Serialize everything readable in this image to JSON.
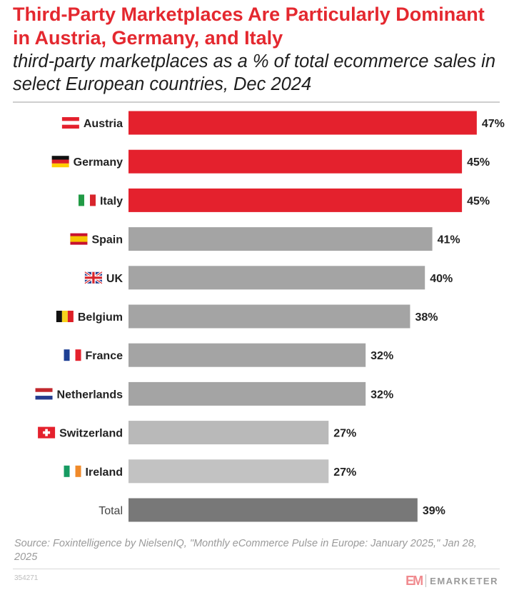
{
  "title": "Third-Party Marketplaces Are Particularly Dominant in Austria, Germany, and Italy",
  "subtitle": "third-party marketplaces as a % of total ecommerce sales in select European countries, Dec 2024",
  "chart_data": {
    "type": "bar",
    "orientation": "horizontal",
    "title": "Third-Party Marketplaces Are Particularly Dominant in Austria, Germany, and Italy",
    "subtitle": "third-party marketplaces as a % of total ecommerce sales in select European countries, Dec 2024",
    "xlabel": "",
    "ylabel": "",
    "unit": "%",
    "xlim": [
      0,
      50
    ],
    "categories": [
      "Austria",
      "Germany",
      "Italy",
      "Spain",
      "UK",
      "Belgium",
      "France",
      "Netherlands",
      "Switzerland",
      "Ireland",
      "Total"
    ],
    "values": [
      47,
      45,
      45,
      41,
      40,
      38,
      32,
      32,
      27,
      27,
      39
    ],
    "value_labels": [
      "47%",
      "45%",
      "45%",
      "41%",
      "40%",
      "38%",
      "32%",
      "32%",
      "27%",
      "27%",
      "39%"
    ],
    "bar_colors": [
      "#e4212d",
      "#e4212d",
      "#e4212d",
      "#a4a4a4",
      "#a4a4a4",
      "#a4a4a4",
      "#a4a4a4",
      "#a4a4a4",
      "#b9b9b9",
      "#c2c2c2",
      "#787878"
    ],
    "flags": [
      "austria-flag",
      "germany-flag",
      "italy-flag",
      "spain-flag",
      "uk-flag",
      "belgium-flag",
      "france-flag",
      "netherlands-flag",
      "switzerland-flag",
      "ireland-flag",
      ""
    ],
    "legend": null,
    "grid": false
  },
  "source": "Source: Foxintelligence by NielsenIQ, \"Monthly eCommerce Pulse in Europe: January 2025,\" Jan 28, 2025",
  "chart_id": "354271",
  "logo": {
    "mark": "EM",
    "word": "EMARKETER"
  }
}
